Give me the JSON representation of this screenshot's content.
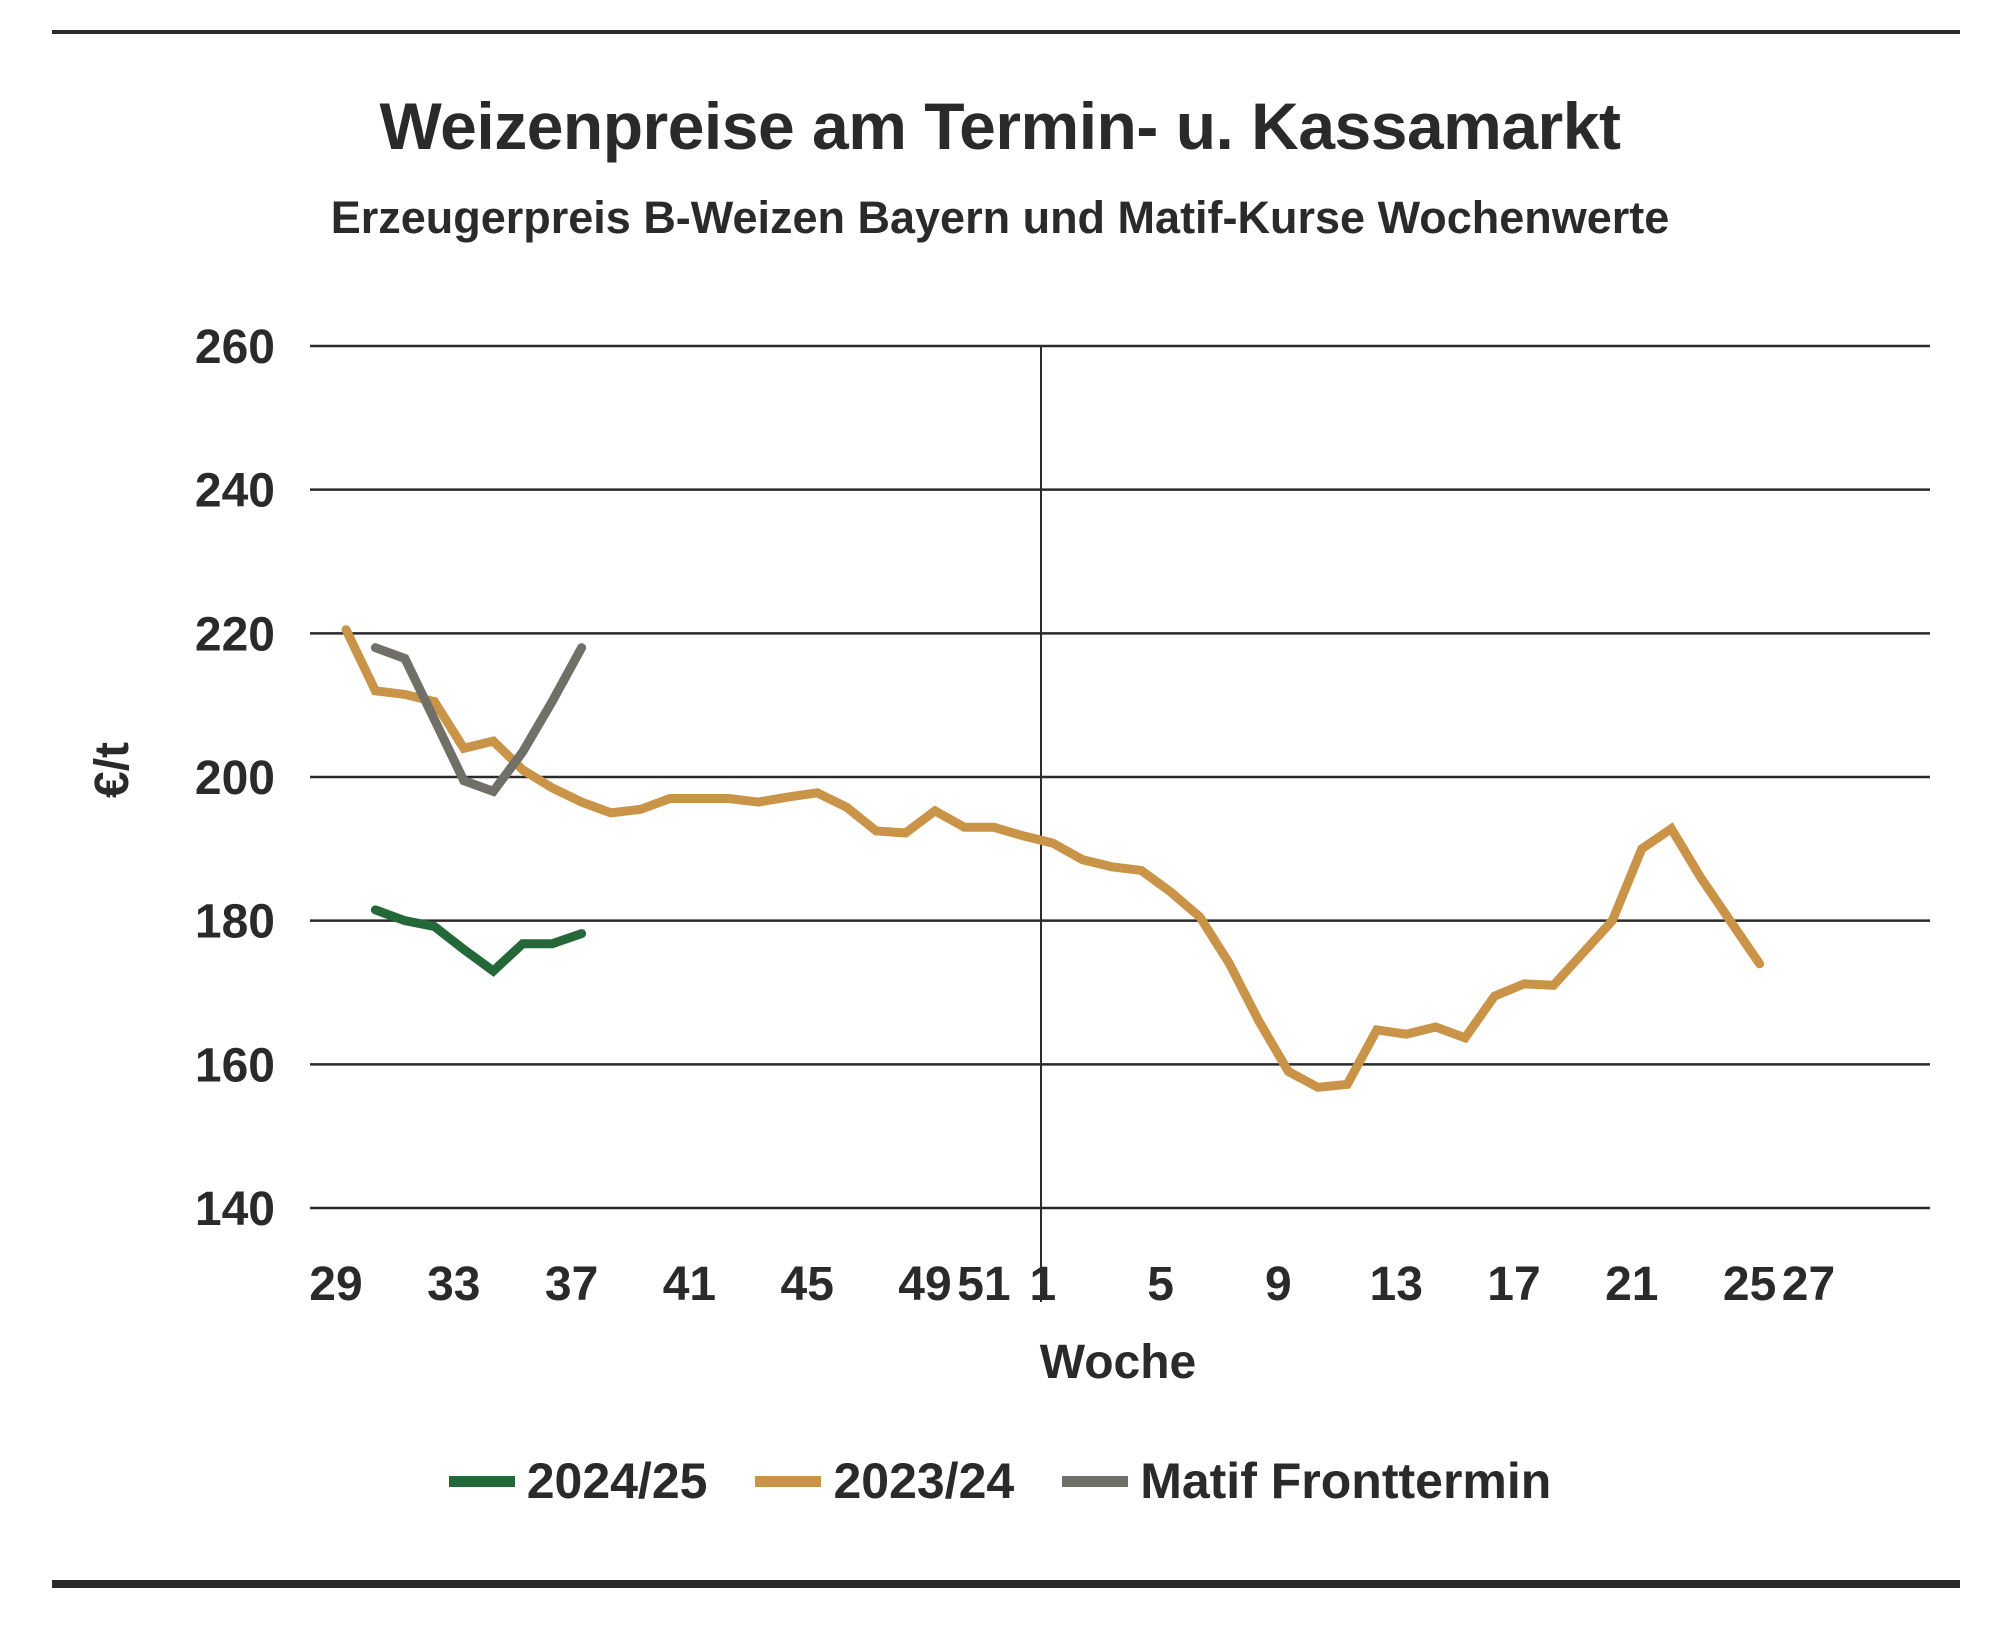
{
  "chart_data": {
    "type": "line",
    "title": "Weizenpreise am Termin- u. Kassamarkt",
    "subtitle": "Erzeugerpreis B-Weizen Bayern und Matif-Kurse Wochenwerte",
    "xlabel": "Woche",
    "ylabel": "€/t",
    "ylim": [
      140,
      260
    ],
    "yticks": [
      260,
      240,
      220,
      200,
      180,
      160,
      140
    ],
    "x_tick_labels": [
      "29",
      "33",
      "37",
      "41",
      "45",
      "49",
      "51",
      "1",
      "5",
      "9",
      "13",
      "17",
      "21",
      "25",
      "27"
    ],
    "year_divider_after_week": 52,
    "grid": "horizontal",
    "legend_position": "bottom",
    "series": [
      {
        "name": "2024/25",
        "color": "#24683a",
        "points": [
          [
            30,
            181.5
          ],
          [
            31,
            180
          ],
          [
            32,
            179.2
          ],
          [
            33,
            176
          ],
          [
            34,
            173
          ],
          [
            35,
            176.8
          ],
          [
            36,
            176.8
          ],
          [
            37,
            178.2
          ]
        ]
      },
      {
        "name": "2023/24",
        "color": "#c99447",
        "points": [
          [
            29,
            220.5
          ],
          [
            30,
            212
          ],
          [
            31,
            211.5
          ],
          [
            32,
            210.5
          ],
          [
            33,
            204
          ],
          [
            34,
            205
          ],
          [
            35,
            201
          ],
          [
            36,
            198.5
          ],
          [
            37,
            196.5
          ],
          [
            38,
            195
          ],
          [
            39,
            195.5
          ],
          [
            40,
            197
          ],
          [
            41,
            197
          ],
          [
            42,
            197
          ],
          [
            43,
            196.5
          ],
          [
            44,
            197.2
          ],
          [
            45,
            197.8
          ],
          [
            46,
            195.8
          ],
          [
            47,
            192.5
          ],
          [
            48,
            192.2
          ],
          [
            49,
            195.3
          ],
          [
            50,
            193
          ],
          [
            51,
            193
          ],
          [
            52,
            191.8
          ],
          [
            53,
            190.8
          ],
          [
            1,
            188.5
          ],
          [
            2,
            187.5
          ],
          [
            3,
            187
          ],
          [
            4,
            184
          ],
          [
            5,
            180.5
          ],
          [
            6,
            174
          ],
          [
            7,
            166
          ],
          [
            8,
            159
          ],
          [
            9,
            156.8
          ],
          [
            10,
            157.2
          ],
          [
            11,
            164.8
          ],
          [
            12,
            164.2
          ],
          [
            13,
            165.2
          ],
          [
            14,
            163.7
          ],
          [
            15,
            169.5
          ],
          [
            16,
            171.2
          ],
          [
            17,
            171
          ],
          [
            18,
            175.5
          ],
          [
            19,
            180
          ],
          [
            20,
            190
          ],
          [
            21,
            192.8
          ],
          [
            22,
            186
          ],
          [
            23,
            180
          ],
          [
            24,
            174
          ]
        ]
      },
      {
        "name": "Matif Fronttermin",
        "color": "#707068",
        "points": [
          [
            30,
            218
          ],
          [
            31,
            216.5
          ],
          [
            32,
            208
          ],
          [
            33,
            199.5
          ],
          [
            34,
            198
          ],
          [
            35,
            203.5
          ],
          [
            36,
            210.5
          ],
          [
            37,
            218
          ]
        ]
      }
    ]
  }
}
